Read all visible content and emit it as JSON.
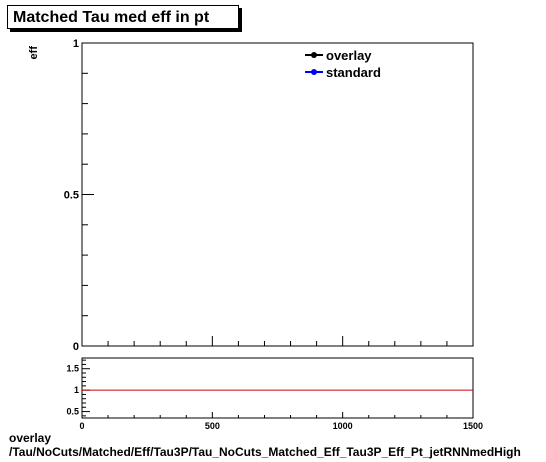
{
  "title": "Matched Tau med eff in pt",
  "footer": {
    "line1": "overlay",
    "line2": "/Tau/NoCuts/Matched/Eff/Tau3P/Tau_NoCuts_Matched_Eff_Tau3P_Eff_Pt_jetRNNmedHigh"
  },
  "chart_data": [
    {
      "type": "line",
      "ylabel": "eff",
      "xlabel": "",
      "xlim": [
        0,
        1500
      ],
      "ylim": [
        0,
        1
      ],
      "y_ticks": [
        "0",
        "0.5",
        "1"
      ],
      "legend": {
        "placement": "top-right",
        "entries": [
          {
            "name": "overlay",
            "color": "#000000"
          },
          {
            "name": "standard",
            "color": "#0000ff"
          }
        ]
      },
      "series": [
        {
          "name": "overlay",
          "color": "#000000",
          "x": [],
          "y": []
        },
        {
          "name": "standard",
          "color": "#0000ff",
          "x": [],
          "y": []
        }
      ]
    },
    {
      "type": "line",
      "xlim": [
        0,
        1500
      ],
      "ylim": [
        0.35,
        1.75
      ],
      "x_ticks": [
        "0",
        "500",
        "1000",
        "1500"
      ],
      "y_ticks": [
        "0.5",
        "1",
        "1.5"
      ],
      "reference_line": {
        "y": 1,
        "color": "#cc0000"
      }
    }
  ]
}
